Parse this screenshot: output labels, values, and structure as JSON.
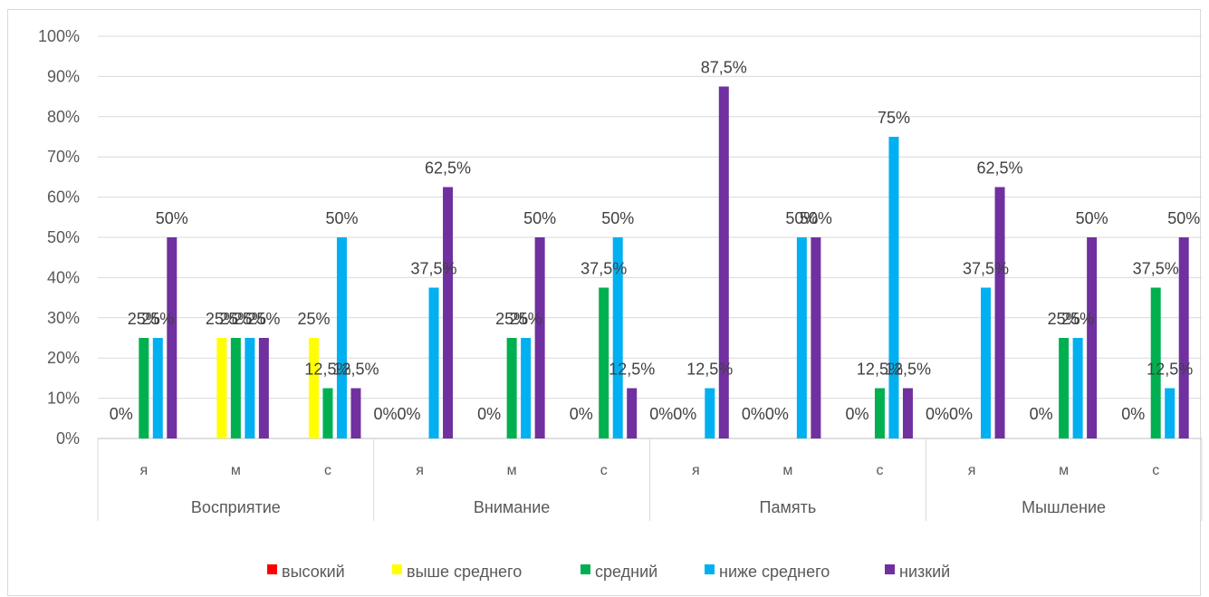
{
  "chart_data": {
    "type": "bar",
    "title": "",
    "xlabel": "",
    "ylabel": "",
    "ylim": [
      0,
      100
    ],
    "y_ticks": [
      "0%",
      "10%",
      "20%",
      "30%",
      "40%",
      "50%",
      "60%",
      "70%",
      "80%",
      "90%",
      "100%"
    ],
    "grid": true,
    "legend_position": "bottom",
    "groups": [
      {
        "name": "Восприятие",
        "categories": [
          "я",
          "м",
          "с"
        ]
      },
      {
        "name": "Внимание",
        "categories": [
          "я",
          "м",
          "с"
        ]
      },
      {
        "name": "Память",
        "categories": [
          "я",
          "м",
          "с"
        ]
      },
      {
        "name": "Мышление",
        "categories": [
          "я",
          "м",
          "с"
        ]
      }
    ],
    "series": [
      {
        "name": "высокий",
        "color": "#FF0000",
        "values": [
          null,
          null,
          null,
          null,
          null,
          null,
          null,
          null,
          null,
          null,
          null,
          null
        ],
        "labels": [
          "",
          "",
          "",
          "",
          "",
          "",
          "",
          "",
          "",
          "",
          "",
          ""
        ]
      },
      {
        "name": "выше среднего",
        "color": "#FFFF00",
        "values": [
          0,
          25,
          25,
          null,
          null,
          null,
          null,
          null,
          null,
          null,
          null,
          null
        ],
        "labels": [
          "0%",
          "25%",
          "25%",
          "0%",
          "",
          "",
          "0%",
          "0%",
          "",
          "0%",
          "",
          ""
        ]
      },
      {
        "name": "средний",
        "color": "#00B050",
        "values": [
          25,
          25,
          12.5,
          0,
          25,
          37.5,
          0,
          0,
          12.5,
          0,
          25,
          37.5
        ],
        "labels": [
          "25%",
          "25%",
          "12,5%",
          "0%",
          "25%",
          "37,5%",
          "0%",
          "0%",
          "12,5%",
          "0%",
          "25%",
          "37,5%"
        ]
      },
      {
        "name": "ниже среднего",
        "color": "#00B0F0",
        "values": [
          25,
          25,
          50,
          37.5,
          25,
          50,
          12.5,
          50,
          75,
          37.5,
          25,
          12.5
        ],
        "labels": [
          "25%",
          "25%",
          "50%",
          "37,5%",
          "25%",
          "50%",
          "12,5%",
          "50%",
          "75%",
          "37,5%",
          "25%",
          "12,5%"
        ]
      },
      {
        "name": "низкий",
        "color": "#7030A0",
        "values": [
          50,
          25,
          12.5,
          62.5,
          50,
          12.5,
          87.5,
          50,
          12.5,
          62.5,
          50,
          50
        ],
        "labels": [
          "50%",
          "25%",
          "12,5%",
          "62,5%",
          "50%",
          "12,5%",
          "87,5%",
          "50%",
          "12,5%",
          "62,5%",
          "50%",
          "50%"
        ]
      }
    ],
    "zero_labels": [
      {
        "cat": 0,
        "text": "0%"
      },
      {
        "cat": 1,
        "text": ""
      },
      {
        "cat": 2,
        "text": ""
      },
      {
        "cat": 3,
        "text": "0%0%"
      },
      {
        "cat": 4,
        "text": "0%"
      },
      {
        "cat": 5,
        "text": "0%"
      },
      {
        "cat": 6,
        "text": "0%0%"
      },
      {
        "cat": 7,
        "text": "0%0%"
      },
      {
        "cat": 8,
        "text": "0%"
      },
      {
        "cat": 9,
        "text": "0%0%"
      },
      {
        "cat": 10,
        "text": "0%"
      },
      {
        "cat": 11,
        "text": "0%"
      }
    ]
  }
}
